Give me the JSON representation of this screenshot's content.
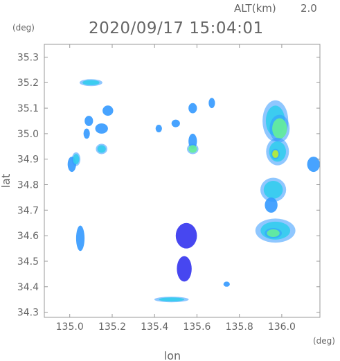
{
  "header": {
    "altitude_label": "ALT(km)",
    "altitude_value": "2.0",
    "timestamp": "2020/09/17 15:04:01"
  },
  "chart_data": {
    "type": "heatmap",
    "title": "2020/09/17 15:04:01",
    "xlabel": "lon",
    "ylabel": "lat",
    "x_unit": "(deg)",
    "y_unit": "(deg)",
    "xlim": [
      134.88,
      136.18
    ],
    "ylim": [
      34.28,
      35.35
    ],
    "xticks": [
      135.0,
      135.2,
      135.4,
      135.6,
      135.8,
      136.0
    ],
    "xtick_labels": [
      "135.0",
      "135.2",
      "135.4",
      "135.6",
      "135.8",
      "136.0"
    ],
    "yticks": [
      34.3,
      34.4,
      34.5,
      34.6,
      34.7,
      34.8,
      34.9,
      35.0,
      35.1,
      35.2,
      35.3
    ],
    "ytick_labels": [
      "34.3",
      "34.4",
      "34.5",
      "34.6",
      "34.7",
      "34.8",
      "34.9",
      "35.0",
      "35.1",
      "35.2",
      "35.3"
    ],
    "grid": false,
    "colors": {
      "level_1": "#3333ee",
      "level_2": "#3399ff",
      "level_3": "#33ccee",
      "level_4": "#66ee99",
      "level_5": "#bbee33",
      "axis": "#999999",
      "text": "#666666"
    },
    "echoes": [
      {
        "lon": 135.97,
        "lat": 35.05,
        "rx": 0.045,
        "ry": 0.06,
        "level": 3
      },
      {
        "lon": 135.99,
        "lat": 35.02,
        "rx": 0.035,
        "ry": 0.04,
        "level": 4
      },
      {
        "lon": 135.98,
        "lat": 34.93,
        "rx": 0.04,
        "ry": 0.04,
        "level": 3
      },
      {
        "lon": 135.97,
        "lat": 34.92,
        "rx": 0.015,
        "ry": 0.015,
        "level": 5
      },
      {
        "lon": 136.15,
        "lat": 34.88,
        "rx": 0.03,
        "ry": 0.03,
        "level": 2
      },
      {
        "lon": 135.96,
        "lat": 34.78,
        "rx": 0.045,
        "ry": 0.035,
        "level": 3
      },
      {
        "lon": 135.95,
        "lat": 34.72,
        "rx": 0.03,
        "ry": 0.03,
        "level": 2
      },
      {
        "lon": 135.97,
        "lat": 34.62,
        "rx": 0.07,
        "ry": 0.035,
        "level": 3
      },
      {
        "lon": 135.96,
        "lat": 34.61,
        "rx": 0.03,
        "ry": 0.015,
        "level": 4
      },
      {
        "lon": 135.18,
        "lat": 35.09,
        "rx": 0.025,
        "ry": 0.02,
        "level": 2
      },
      {
        "lon": 135.15,
        "lat": 35.02,
        "rx": 0.03,
        "ry": 0.02,
        "level": 2
      },
      {
        "lon": 135.09,
        "lat": 35.05,
        "rx": 0.02,
        "ry": 0.02,
        "level": 2
      },
      {
        "lon": 135.08,
        "lat": 35.0,
        "rx": 0.015,
        "ry": 0.02,
        "level": 2
      },
      {
        "lon": 135.15,
        "lat": 34.94,
        "rx": 0.02,
        "ry": 0.015,
        "level": 3
      },
      {
        "lon": 135.01,
        "lat": 34.88,
        "rx": 0.02,
        "ry": 0.03,
        "level": 2
      },
      {
        "lon": 135.03,
        "lat": 34.9,
        "rx": 0.015,
        "ry": 0.02,
        "level": 3
      },
      {
        "lon": 135.05,
        "lat": 34.59,
        "rx": 0.02,
        "ry": 0.05,
        "level": 2
      },
      {
        "lon": 135.5,
        "lat": 35.04,
        "rx": 0.02,
        "ry": 0.015,
        "level": 2
      },
      {
        "lon": 135.58,
        "lat": 34.97,
        "rx": 0.02,
        "ry": 0.03,
        "level": 2
      },
      {
        "lon": 135.58,
        "lat": 34.94,
        "rx": 0.02,
        "ry": 0.015,
        "level": 4
      },
      {
        "lon": 135.58,
        "lat": 35.1,
        "rx": 0.02,
        "ry": 0.02,
        "level": 2
      },
      {
        "lon": 135.67,
        "lat": 35.12,
        "rx": 0.015,
        "ry": 0.02,
        "level": 2
      },
      {
        "lon": 135.42,
        "lat": 35.02,
        "rx": 0.015,
        "ry": 0.015,
        "level": 2
      },
      {
        "lon": 135.55,
        "lat": 34.6,
        "rx": 0.05,
        "ry": 0.05,
        "level": 1
      },
      {
        "lon": 135.54,
        "lat": 34.47,
        "rx": 0.035,
        "ry": 0.05,
        "level": 1
      },
      {
        "lon": 135.74,
        "lat": 34.41,
        "rx": 0.015,
        "ry": 0.01,
        "level": 2
      },
      {
        "lon": 135.1,
        "lat": 35.2,
        "rx": 0.04,
        "ry": 0.01,
        "level": 3
      },
      {
        "lon": 135.48,
        "lat": 34.35,
        "rx": 0.06,
        "ry": 0.008,
        "level": 3
      }
    ]
  }
}
